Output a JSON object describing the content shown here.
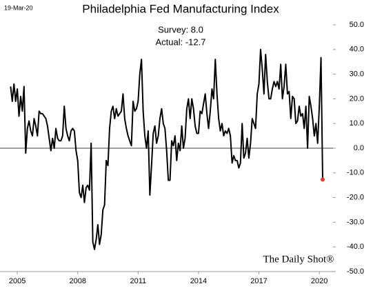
{
  "chart_data": {
    "type": "line",
    "title": "Philadelphia Fed Manufacturing Index",
    "date_label": "19-Mar-20",
    "annotations": [
      "Survey: 8.0",
      "Actual:  -12.7"
    ],
    "watermark": "The Daily Shot®",
    "color": "#000000",
    "last_point_color": "#e8392f",
    "x": [
      2004.667,
      2004.75,
      2004.833,
      2004.917,
      2005,
      2005.083,
      2005.167,
      2005.25,
      2005.333,
      2005.417,
      2005.5,
      2005.583,
      2005.667,
      2005.75,
      2005.833,
      2005.917,
      2006,
      2006.083,
      2006.167,
      2006.25,
      2006.333,
      2006.417,
      2006.5,
      2006.583,
      2006.667,
      2006.75,
      2006.833,
      2006.917,
      2007,
      2007.083,
      2007.167,
      2007.25,
      2007.333,
      2007.417,
      2007.5,
      2007.583,
      2007.667,
      2007.75,
      2007.833,
      2007.917,
      2008,
      2008.083,
      2008.167,
      2008.25,
      2008.333,
      2008.417,
      2008.5,
      2008.583,
      2008.667,
      2008.75,
      2008.833,
      2008.917,
      2009,
      2009.083,
      2009.167,
      2009.25,
      2009.333,
      2009.417,
      2009.5,
      2009.583,
      2009.667,
      2009.75,
      2009.833,
      2009.917,
      2010,
      2010.083,
      2010.167,
      2010.25,
      2010.333,
      2010.417,
      2010.5,
      2010.583,
      2010.667,
      2010.75,
      2010.833,
      2010.917,
      2011,
      2011.083,
      2011.167,
      2011.25,
      2011.333,
      2011.417,
      2011.5,
      2011.583,
      2011.667,
      2011.75,
      2011.833,
      2011.917,
      2012,
      2012.083,
      2012.167,
      2012.25,
      2012.333,
      2012.417,
      2012.5,
      2012.583,
      2012.667,
      2012.75,
      2012.833,
      2012.917,
      2013,
      2013.083,
      2013.167,
      2013.25,
      2013.333,
      2013.417,
      2013.5,
      2013.583,
      2013.667,
      2013.75,
      2013.833,
      2013.917,
      2014,
      2014.083,
      2014.167,
      2014.25,
      2014.333,
      2014.417,
      2014.5,
      2014.583,
      2014.667,
      2014.75,
      2014.833,
      2014.917,
      2015,
      2015.083,
      2015.167,
      2015.25,
      2015.333,
      2015.417,
      2015.5,
      2015.583,
      2015.667,
      2015.75,
      2015.833,
      2015.917,
      2016,
      2016.083,
      2016.167,
      2016.25,
      2016.333,
      2016.417,
      2016.5,
      2016.583,
      2016.667,
      2016.75,
      2016.833,
      2016.917,
      2017,
      2017.083,
      2017.167,
      2017.25,
      2017.333,
      2017.417,
      2017.5,
      2017.583,
      2017.667,
      2017.75,
      2017.833,
      2017.917,
      2018,
      2018.083,
      2018.167,
      2018.25,
      2018.333,
      2018.417,
      2018.5,
      2018.583,
      2018.667,
      2018.75,
      2018.833,
      2018.917,
      2019,
      2019.083,
      2019.167,
      2019.25,
      2019.333,
      2019.417,
      2019.5,
      2019.583,
      2019.667,
      2019.75,
      2019.833,
      2019.917,
      2020,
      2020.083,
      2020.167
    ],
    "values": [
      25,
      19,
      26,
      19,
      24,
      13,
      21,
      15,
      25,
      -2,
      8,
      11,
      7,
      5,
      12,
      9,
      5,
      15,
      14,
      14,
      13,
      12,
      9,
      4,
      -1,
      4,
      0,
      8,
      4,
      3,
      3,
      5,
      17,
      8,
      5,
      3,
      7,
      8,
      7,
      -1,
      -5,
      -18,
      -20,
      -15,
      -22,
      -16,
      -15,
      -17,
      2,
      -38,
      -41,
      -37,
      -31,
      -39,
      -35,
      -25,
      -23,
      -5,
      -7,
      8,
      15,
      17,
      12,
      16,
      13,
      14,
      15,
      22,
      12,
      8,
      5,
      3,
      1,
      19,
      15,
      16,
      19,
      30,
      36,
      15,
      5,
      0,
      7,
      -19,
      -7,
      6,
      9,
      2,
      5,
      12,
      16,
      10,
      8,
      -1,
      -13,
      -13,
      3,
      1,
      5,
      -5,
      2,
      -1,
      9,
      0,
      4,
      16,
      20,
      12,
      20,
      16,
      9,
      6,
      6,
      15,
      14,
      18,
      22,
      14,
      8,
      15,
      24,
      20,
      36,
      22,
      12,
      7,
      10,
      5,
      7,
      6,
      8,
      5,
      -6,
      -3,
      -5,
      -5,
      -8,
      -6,
      10,
      -4,
      -2,
      4,
      -4,
      2,
      12,
      10,
      8,
      22,
      26,
      40,
      32,
      22,
      38,
      27,
      20,
      20,
      24,
      27,
      25,
      27,
      24,
      34,
      20,
      25,
      34,
      22,
      23,
      12,
      21,
      20,
      10,
      11,
      17,
      13,
      14,
      8,
      17,
      0,
      21,
      17,
      12,
      5,
      10,
      2,
      17,
      36.7,
      -12.7
    ],
    "xlim": [
      2004.14,
      2020.68
    ],
    "xticks": [
      2005,
      2008,
      2011,
      2014,
      2017,
      2020
    ],
    "ylim": [
      -50,
      50
    ],
    "yticks": [
      {
        "value": 50,
        "label": "50.0"
      },
      {
        "value": 40,
        "label": "40.0"
      },
      {
        "value": 30,
        "label": "30.0"
      },
      {
        "value": 20,
        "label": "20.0"
      },
      {
        "value": 10,
        "label": "10.0"
      },
      {
        "value": 0,
        "label": "0.0"
      },
      {
        "value": -10,
        "label": "-10.0"
      },
      {
        "value": -20,
        "label": "-20.0"
      },
      {
        "value": -30,
        "label": "-30.0"
      },
      {
        "value": -40,
        "label": "-40.0"
      },
      {
        "value": -50,
        "label": "-50.0"
      }
    ],
    "zero_line": true
  }
}
